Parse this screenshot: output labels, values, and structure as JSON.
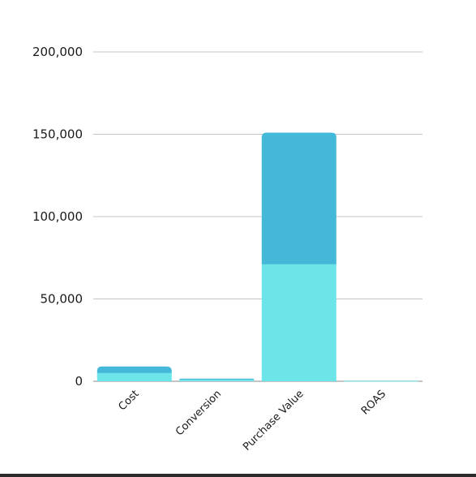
{
  "chart_data": {
    "type": "bar",
    "stacked": true,
    "categories": [
      "Cost",
      "Conversion",
      "Purchase Value",
      "ROAS"
    ],
    "series": [
      {
        "values": [
          5000,
          900,
          71000,
          200
        ],
        "color": "#6be5e8"
      },
      {
        "values": [
          4000,
          700,
          80000,
          100
        ],
        "color": "#43b8d8"
      }
    ],
    "y_ticks": [
      "0",
      "50,000",
      "100,000",
      "150,000",
      "200,000"
    ],
    "y_tick_values": [
      0,
      50000,
      100000,
      150000,
      200000
    ],
    "ylim": [
      0,
      200000
    ],
    "grid": true,
    "legend": "none",
    "title": "",
    "xlabel": "",
    "ylabel": ""
  }
}
